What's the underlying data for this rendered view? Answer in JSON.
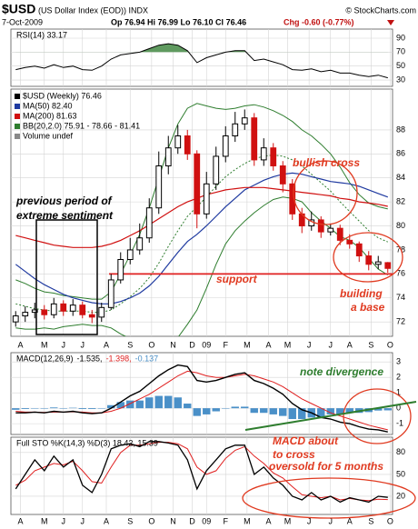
{
  "header": {
    "symbol": "$USD",
    "name": "(US Dollar Index (EOD)) INDX",
    "source": "© StockCharts.com",
    "date": "7-Oct-2009",
    "quote": "Op 76.94 Hi 76.99 Lo 76.10 Cl 76.46",
    "change": "Chg -0.60 (-0.77%)"
  },
  "chart_data": [
    {
      "type": "line",
      "label": "RSI(14) 33.17",
      "color": "#000000",
      "ylim": [
        21,
        103
      ],
      "yticks": [
        30,
        50,
        70,
        90
      ],
      "highlight": {
        "above": 70,
        "color": "#5f9a5f"
      },
      "values": [
        45,
        48,
        50,
        47,
        52,
        48,
        50,
        45,
        44,
        50,
        60,
        66,
        68,
        70,
        75,
        80,
        82,
        80,
        72,
        55,
        62,
        66,
        70,
        72,
        72,
        58,
        60,
        56,
        52,
        45,
        44,
        46,
        42,
        44,
        40,
        40,
        37,
        35,
        37,
        33.17
      ]
    },
    {
      "type": "candlestick",
      "label": "$USD (Weekly) 76.46",
      "volume_label": "Volume undef",
      "up_color": "#000000",
      "down_color": "#d01010",
      "ylim": [
        70.8,
        91.4
      ],
      "yticks": [
        72,
        74,
        76,
        78,
        80,
        82,
        84,
        86,
        88
      ],
      "xlim": [
        0,
        80
      ],
      "xticks": [
        {
          "value": 2,
          "label": "A"
        },
        {
          "value": 7,
          "label": "M"
        },
        {
          "value": 11,
          "label": "J"
        },
        {
          "value": 15,
          "label": "J"
        },
        {
          "value": 20,
          "label": "A"
        },
        {
          "value": 25,
          "label": "S"
        },
        {
          "value": 29.5,
          "label": "O"
        },
        {
          "value": 34,
          "label": "N"
        },
        {
          "value": 38,
          "label": "D"
        },
        {
          "value": 41,
          "label": "09"
        },
        {
          "value": 45,
          "label": "F"
        },
        {
          "value": 49.5,
          "label": "M"
        },
        {
          "value": 54,
          "label": "A"
        },
        {
          "value": 58,
          "label": "M"
        },
        {
          "value": 62.5,
          "label": "J"
        },
        {
          "value": 67,
          "label": "J"
        },
        {
          "value": 71,
          "label": "A"
        },
        {
          "value": 75.5,
          "label": "S"
        },
        {
          "value": 79.5,
          "label": "O"
        }
      ],
      "x": [
        1,
        3,
        5,
        7,
        9,
        11,
        13,
        15,
        17,
        19,
        21,
        23,
        25,
        27,
        29,
        31,
        33,
        35,
        37,
        39,
        41,
        43,
        45,
        47,
        49,
        51,
        53,
        55,
        57,
        59,
        61,
        63,
        65,
        67,
        69,
        71,
        73,
        75,
        77,
        79
      ],
      "open": [
        72.0,
        72.5,
        72.8,
        73.0,
        72.6,
        73.5,
        72.9,
        73.4,
        72.6,
        72.4,
        73.2,
        75.5,
        77.2,
        78.0,
        79.0,
        81.5,
        85.0,
        86.5,
        87.5,
        86.0,
        81.0,
        83.5,
        85.8,
        87.5,
        88.5,
        89.0,
        85.5,
        86.5,
        85.0,
        83.5,
        81.0,
        80.0,
        80.5,
        79.5,
        79.8,
        78.8,
        78.5,
        77.5,
        76.8,
        76.94
      ],
      "high": [
        72.9,
        73.3,
        73.6,
        73.4,
        74.0,
        73.8,
        73.9,
        73.7,
        73.0,
        73.6,
        76.0,
        77.8,
        79.0,
        80.2,
        82.3,
        86.2,
        87.5,
        88.4,
        88.0,
        86.3,
        84.5,
        86.6,
        88.3,
        89.5,
        89.7,
        89.4,
        87.3,
        86.9,
        85.4,
        83.9,
        81.5,
        81.2,
        80.8,
        80.2,
        80.1,
        79.3,
        78.7,
        77.9,
        77.5,
        76.99
      ],
      "low": [
        71.6,
        72.0,
        72.3,
        72.2,
        72.3,
        72.5,
        72.5,
        72.3,
        71.9,
        72.0,
        73.0,
        75.2,
        76.8,
        77.6,
        78.6,
        81.0,
        84.3,
        86.0,
        85.5,
        79.8,
        80.6,
        83.0,
        85.3,
        87.0,
        88.0,
        85.0,
        85.0,
        84.6,
        82.8,
        80.5,
        79.4,
        79.6,
        79.0,
        79.2,
        78.4,
        78.1,
        77.0,
        76.3,
        76.4,
        76.1
      ],
      "close": [
        72.5,
        72.8,
        73.0,
        72.6,
        73.5,
        72.9,
        73.4,
        72.6,
        72.4,
        73.2,
        75.5,
        77.2,
        78.0,
        79.0,
        81.5,
        85.0,
        86.5,
        87.5,
        86.0,
        81.0,
        83.5,
        85.8,
        87.5,
        88.5,
        89.0,
        85.5,
        86.5,
        85.0,
        83.5,
        81.0,
        80.0,
        80.5,
        79.5,
        79.8,
        78.8,
        78.5,
        77.5,
        76.8,
        77.0,
        76.46
      ],
      "overlays": [
        {
          "label": "MA(50) 82.40",
          "color": "#1f3aa0",
          "values": [
            76.8,
            76.2,
            75.6,
            75.1,
            74.7,
            74.3,
            74.0,
            73.8,
            73.6,
            73.5,
            73.5,
            73.7,
            74.0,
            74.4,
            75.0,
            75.8,
            76.8,
            77.8,
            78.7,
            79.3,
            80.0,
            80.8,
            81.6,
            82.3,
            83.0,
            83.4,
            83.8,
            84.1,
            84.3,
            84.4,
            84.3,
            84.1,
            83.9,
            83.7,
            83.6,
            83.5,
            83.3,
            83.0,
            82.7,
            82.4
          ]
        },
        {
          "label": "MA(200) 81.63",
          "color": "#d01010",
          "values": [
            79.2,
            79.0,
            78.8,
            78.6,
            78.4,
            78.3,
            78.2,
            78.2,
            78.2,
            78.3,
            78.5,
            78.8,
            79.2,
            79.6,
            80.1,
            80.6,
            81.1,
            81.6,
            82.0,
            82.3,
            82.6,
            82.8,
            83.0,
            83.1,
            83.2,
            83.2,
            83.2,
            83.1,
            83.0,
            82.9,
            82.8,
            82.7,
            82.6,
            82.5,
            82.3,
            82.2,
            82.0,
            81.9,
            81.8,
            81.63
          ]
        }
      ],
      "bands": {
        "label": "BB(20,2.0) 75.91 - 78.66 - 81.41",
        "color": "#2e7d2e",
        "upper": [
          75.5,
          75.2,
          74.8,
          74.5,
          74.4,
          74.2,
          74.1,
          74.0,
          73.9,
          73.9,
          74.5,
          76.0,
          77.6,
          79.3,
          81.5,
          84.0,
          86.5,
          88.5,
          89.8,
          90.2,
          90.0,
          89.8,
          89.7,
          89.8,
          90.0,
          90.1,
          89.9,
          89.6,
          89.2,
          88.7,
          88.0,
          87.5,
          86.8,
          86.0,
          84.9,
          83.6,
          82.6,
          81.9,
          81.6,
          81.41
        ],
        "middle": [
          73.5,
          73.3,
          73.1,
          73.0,
          72.9,
          72.9,
          72.9,
          72.9,
          72.8,
          72.8,
          73.0,
          73.5,
          74.1,
          74.8,
          75.7,
          76.9,
          78.3,
          79.6,
          80.8,
          81.6,
          82.4,
          83.3,
          84.1,
          84.7,
          85.2,
          85.6,
          85.8,
          85.9,
          85.8,
          85.5,
          85.0,
          84.3,
          83.6,
          82.9,
          82.0,
          81.2,
          80.4,
          79.6,
          79.0,
          78.66
        ],
        "lower": [
          71.5,
          71.4,
          71.4,
          71.5,
          71.4,
          71.6,
          71.7,
          71.8,
          71.7,
          71.7,
          71.5,
          71.0,
          70.6,
          70.3,
          69.9,
          69.8,
          70.1,
          70.7,
          71.8,
          73.0,
          74.8,
          76.8,
          78.5,
          79.6,
          80.4,
          81.1,
          81.7,
          82.2,
          82.4,
          82.3,
          82.0,
          81.1,
          80.4,
          79.8,
          79.1,
          78.8,
          78.2,
          77.3,
          76.4,
          75.91
        ]
      },
      "support_level": 76,
      "annotations": [
        {
          "lines": [
            "bullish cross"
          ],
          "color": "#e03a20"
        },
        {
          "lines": [
            "previous period of",
            "extreme sentiment"
          ],
          "color": "#000000"
        },
        {
          "lines": [
            "support"
          ],
          "color": "#e03a20"
        },
        {
          "lines": [
            "building",
            "a base"
          ],
          "color": "#e03a20"
        }
      ]
    },
    {
      "type": "macd",
      "label": "MACD(12,26,9)",
      "label_values": [
        "-1.535,",
        "-1.398,",
        "-0.137"
      ],
      "ylim": [
        -1.7,
        3.6
      ],
      "yticks": [
        -1,
        0,
        1,
        2,
        3
      ],
      "macd": {
        "color": "#000000",
        "values": [
          -0.3,
          -0.3,
          -0.25,
          -0.3,
          -0.2,
          -0.25,
          -0.2,
          -0.3,
          -0.35,
          -0.3,
          0.0,
          0.4,
          0.8,
          1.1,
          1.6,
          2.1,
          2.5,
          2.8,
          2.7,
          1.8,
          1.7,
          1.8,
          2.0,
          2.2,
          2.3,
          1.8,
          1.6,
          1.3,
          0.9,
          0.3,
          -0.1,
          -0.3,
          -0.6,
          -0.7,
          -0.9,
          -1.0,
          -1.2,
          -1.35,
          -1.4,
          -1.535
        ]
      },
      "signal": {
        "color": "#e02020",
        "values": [
          -0.2,
          -0.25,
          -0.25,
          -0.27,
          -0.25,
          -0.25,
          -0.23,
          -0.25,
          -0.3,
          -0.3,
          -0.2,
          0.0,
          0.3,
          0.6,
          0.9,
          1.3,
          1.7,
          2.1,
          2.4,
          2.3,
          2.1,
          2.0,
          2.0,
          2.1,
          2.2,
          2.1,
          1.9,
          1.7,
          1.4,
          1.0,
          0.6,
          0.3,
          0.0,
          -0.3,
          -0.5,
          -0.7,
          -0.9,
          -1.1,
          -1.25,
          -1.398
        ]
      },
      "histogram": {
        "color": "#4a90c8",
        "values": [
          -0.1,
          -0.05,
          0,
          -0.03,
          0.05,
          0,
          0.03,
          -0.05,
          -0.05,
          0,
          0.2,
          0.4,
          0.5,
          0.5,
          0.7,
          0.8,
          0.8,
          0.7,
          0.3,
          -0.5,
          -0.4,
          -0.2,
          0,
          0.1,
          0.1,
          -0.3,
          -0.3,
          -0.4,
          -0.5,
          -0.7,
          -0.7,
          -0.6,
          -0.6,
          -0.4,
          -0.4,
          -0.3,
          -0.3,
          -0.25,
          -0.15,
          -0.137
        ]
      },
      "annotations": [
        {
          "lines": [
            "note divergence"
          ],
          "color": "#2e7d2e"
        },
        {
          "lines": [
            "MACD about",
            "to cross"
          ],
          "color": "#e03a20"
        }
      ]
    },
    {
      "type": "stochastic",
      "label": "Full STO %K(14,3) %D(3) 18.42, 15.39",
      "ylim": [
        -5,
        101
      ],
      "yticks": [
        20,
        50,
        80
      ],
      "k": {
        "color": "#000000",
        "values": [
          30,
          50,
          70,
          55,
          75,
          60,
          70,
          35,
          25,
          50,
          85,
          90,
          92,
          88,
          95,
          95,
          93,
          90,
          70,
          30,
          55,
          70,
          85,
          90,
          90,
          50,
          60,
          45,
          35,
          20,
          15,
          25,
          15,
          20,
          12,
          18,
          15,
          12,
          20,
          18.42
        ]
      },
      "d": {
        "color": "#e02020",
        "values": [
          35,
          42,
          55,
          60,
          65,
          63,
          68,
          55,
          40,
          38,
          60,
          80,
          90,
          90,
          92,
          94,
          94,
          92,
          85,
          60,
          50,
          55,
          72,
          83,
          88,
          75,
          65,
          52,
          45,
          33,
          22,
          20,
          18,
          20,
          15,
          17,
          15,
          14,
          16,
          15.39
        ]
      },
      "annotations": [
        {
          "lines": [
            "oversold for 5 months"
          ],
          "color": "#e03a20"
        }
      ]
    }
  ]
}
